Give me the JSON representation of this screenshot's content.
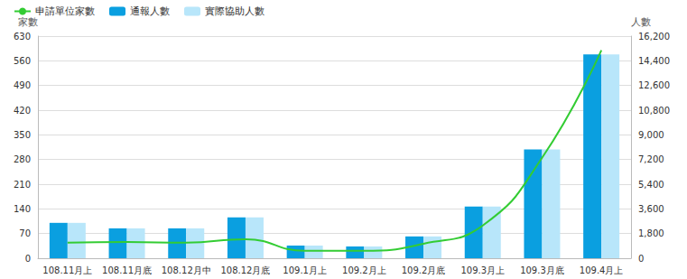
{
  "chart_data": {
    "type": "bar",
    "y_label": "家數",
    "y2_label": "人數",
    "categories": [
      "108.11月上",
      "108.11月底",
      "108.12月中",
      "108.12月底",
      "109.1月上",
      "109.2月上",
      "109.2月底",
      "109.3月上",
      "109.3月底",
      "109.4月上"
    ],
    "series": [
      {
        "name": "申請單位家數",
        "type": "line",
        "color": "#33cc33",
        "line_style": "smooth",
        "marker": "none",
        "values": [
          44,
          46,
          44,
          54,
          21,
          21,
          41,
          93,
          285,
          590
        ]
      },
      {
        "name": "通報人數",
        "type": "bar",
        "color": "#0a9fe0",
        "axis": "y2",
        "values": [
          2580,
          2180,
          2180,
          2975,
          925,
          860,
          1590,
          3770,
          7930,
          14870
        ]
      },
      {
        "name": "實際協助人數",
        "type": "bar",
        "color": "#b8e6fa",
        "axis": "y2",
        "values": [
          2580,
          2180,
          2180,
          2975,
          925,
          860,
          1590,
          3770,
          7930,
          14870
        ]
      }
    ],
    "ylim": [
      0,
      630
    ],
    "yticks": [
      0,
      70,
      140,
      210,
      280,
      350,
      420,
      490,
      560,
      630
    ],
    "y2lim": [
      0,
      16200
    ],
    "y2ticks": [
      0,
      {
        "value": 1800,
        "label": "1,800"
      },
      {
        "value": 3600,
        "label": "3,600"
      },
      {
        "value": 5400,
        "label": "5,400"
      },
      {
        "value": 7200,
        "label": "7,200"
      },
      {
        "value": 9000,
        "label": "9,000"
      },
      {
        "value": 10800,
        "label": "10,800"
      },
      {
        "value": 12600,
        "label": "12,600"
      },
      {
        "value": 14400,
        "label": "14,400"
      },
      {
        "value": 16200,
        "label": "16,200"
      }
    ],
    "grid": true,
    "legend": "top-left"
  }
}
